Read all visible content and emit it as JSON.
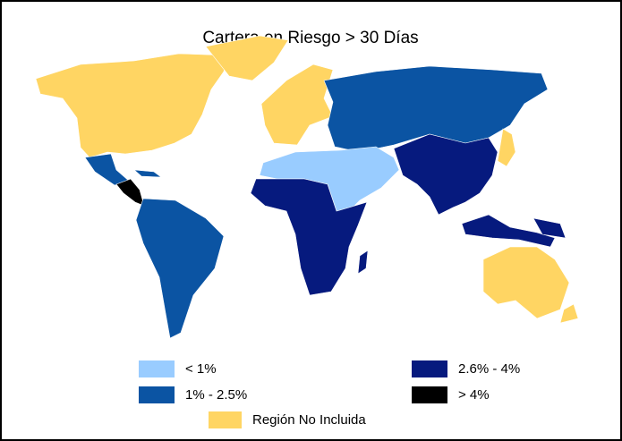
{
  "title": "Cartera en Riesgo > 30 Días",
  "legend": [
    {
      "label": "< 1%",
      "color": "#99ccff"
    },
    {
      "label": "1% - 2.5%",
      "color": "#0b54a3"
    },
    {
      "label": "2.6% - 4%",
      "color": "#061a7e"
    },
    {
      "label": "> 4%",
      "color": "#000000"
    },
    {
      "label": "Región No Incluida",
      "color": "#ffd563"
    }
  ]
}
